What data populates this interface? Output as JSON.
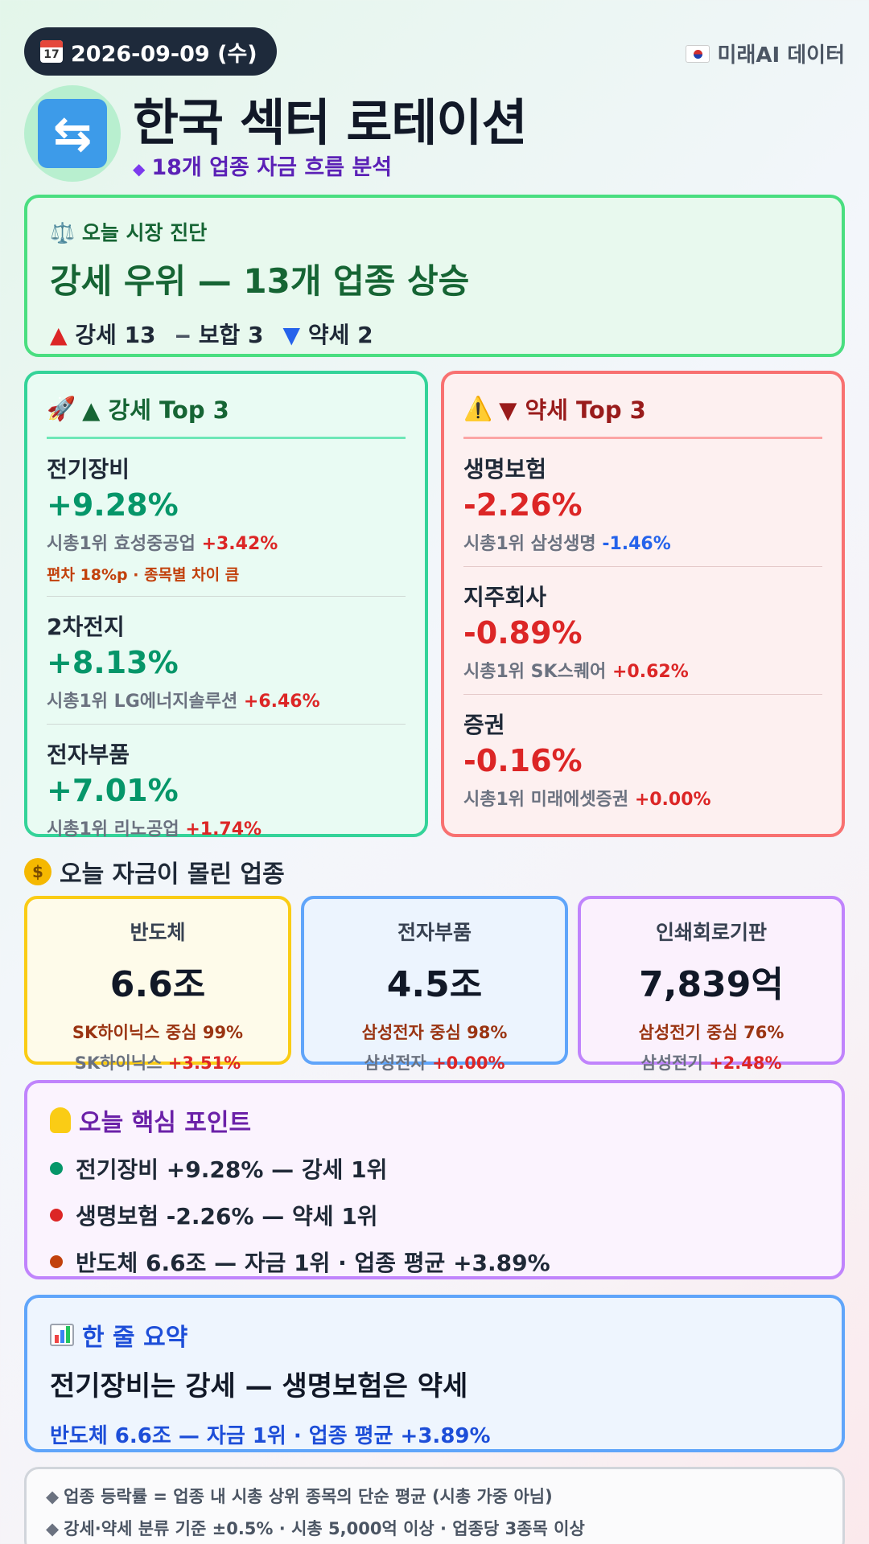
{
  "header": {
    "date": "2026-09-09 (수)",
    "calendar_icon_text": "17",
    "source": "미래AI 데이터",
    "title": "한국 섹터 로테이션",
    "subtitle": "18개 업종 자금 흐름 분석"
  },
  "diagnosis": {
    "label": "⚖️ 오늘 시장 진단",
    "headline": "강세 우위 — 13개 업종 상승",
    "strong_label": "강세 13",
    "neutral_label": "보합 3",
    "weak_label": "약세 2"
  },
  "strong_top": {
    "title": "▲ 강세 Top 3",
    "items": [
      {
        "name": "전기장비",
        "pct": "+9.28%",
        "leader_prefix": "시총1위 효성중공업",
        "leader_pct": "+3.42%",
        "note": "편차 18%p · 종목별 차이 큼"
      },
      {
        "name": "2차전지",
        "pct": "+8.13%",
        "leader_prefix": "시총1위 LG에너지솔루션",
        "leader_pct": "+6.46%"
      },
      {
        "name": "전자부품",
        "pct": "+7.01%",
        "leader_prefix": "시총1위 리노공업",
        "leader_pct": "+1.74%"
      }
    ]
  },
  "weak_top": {
    "title": "▼ 약세 Top 3",
    "items": [
      {
        "name": "생명보험",
        "pct": "-2.26%",
        "leader_prefix": "시총1위 삼성생명",
        "leader_pct": "-1.46%"
      },
      {
        "name": "지주회사",
        "pct": "-0.89%",
        "leader_prefix": "시총1위 SK스퀘어",
        "leader_pct": "+0.62%"
      },
      {
        "name": "증권",
        "pct": "-0.16%",
        "leader_prefix": "시총1위 미래에셋증권",
        "leader_pct": "+0.00%"
      }
    ]
  },
  "flow": {
    "title": "오늘 자금이 몰린 업종",
    "cards": [
      {
        "name": "반도체",
        "amount": "6.6조",
        "share": "SK하이닉스 중심 99%",
        "leader": "SK하이닉스",
        "leader_pct": "+3.51%"
      },
      {
        "name": "전자부품",
        "amount": "4.5조",
        "share": "삼성전자 중심 98%",
        "leader": "삼성전자",
        "leader_pct": "+0.00%"
      },
      {
        "name": "인쇄회로기판",
        "amount": "7,839억",
        "share": "삼성전기 중심 76%",
        "leader": "삼성전기",
        "leader_pct": "+2.48%"
      }
    ]
  },
  "key_points": {
    "title": "오늘 핵심 포인트",
    "items": [
      {
        "text": "전기장비 +9.28% — 강세 1위",
        "color": "#059669"
      },
      {
        "text": "생명보험 -2.26% — 약세 1위",
        "color": "#dc2626"
      },
      {
        "text": "반도체 6.6조 — 자금 1위 · 업종 평균 +3.89%",
        "color": "#c2410c"
      }
    ]
  },
  "summary": {
    "title": "한 줄 요약",
    "headline": "전기장비는 강세 — 생명보험은 약세",
    "sub": "반도체 6.6조 — 자금 1위 · 업종 평균 +3.89%"
  },
  "notes": [
    "업종 등락률 = 업종 내 시총 상위 종목의 단순 평균 (시총 가중 아님)",
    "강세·약세 분류 기준 ±0.5% · 시총 5,000억 이상 · 업종당 3종목 이상"
  ],
  "colors": {
    "up": "#dc2626",
    "down": "#2563eb",
    "strong_accent": "#34d399",
    "weak_accent": "#f87171"
  }
}
